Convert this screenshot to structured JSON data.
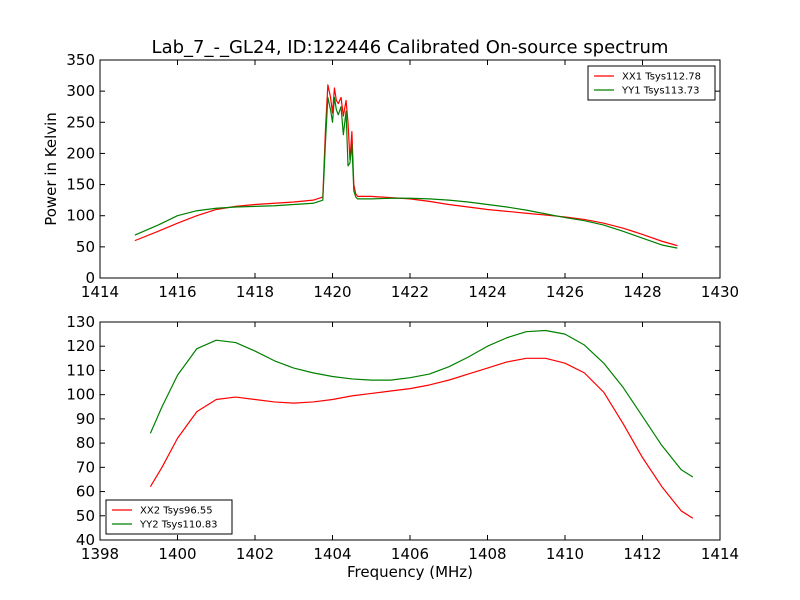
{
  "chart_data": [
    {
      "type": "line",
      "title": "Lab_7_-_GL24, ID:122446 Calibrated On-source spectrum",
      "xlabel": "",
      "ylabel": "Power in Kelvin",
      "xlim": [
        1414,
        1430
      ],
      "ylim": [
        0,
        350
      ],
      "xticks": [
        "1414",
        "1416",
        "1418",
        "1420",
        "1422",
        "1424",
        "1426",
        "1428",
        "1430"
      ],
      "yticks": [
        "0",
        "50",
        "100",
        "150",
        "200",
        "250",
        "300",
        "350"
      ],
      "legend_position": "top-right",
      "grid": false,
      "series": [
        {
          "name": "XX1 Tsys112.78",
          "color": "#ff0000",
          "x": [
            1414.9,
            1415.5,
            1416.0,
            1416.5,
            1417.0,
            1417.5,
            1418.0,
            1418.5,
            1419.0,
            1419.5,
            1419.75,
            1419.82,
            1419.88,
            1419.95,
            1420.0,
            1420.05,
            1420.1,
            1420.15,
            1420.22,
            1420.28,
            1420.35,
            1420.4,
            1420.45,
            1420.5,
            1420.55,
            1420.6,
            1420.65,
            1421.0,
            1421.5,
            1422.0,
            1422.5,
            1423.0,
            1423.5,
            1424.0,
            1424.5,
            1425.0,
            1425.5,
            1426.0,
            1426.5,
            1427.0,
            1427.5,
            1428.0,
            1428.5,
            1428.9
          ],
          "y": [
            60,
            75,
            88,
            100,
            110,
            115,
            118,
            120,
            122,
            125,
            130,
            240,
            310,
            290,
            265,
            305,
            285,
            280,
            290,
            260,
            285,
            250,
            190,
            235,
            150,
            135,
            131,
            131,
            129,
            127,
            123,
            118,
            114,
            110,
            107,
            104,
            101,
            98,
            94,
            88,
            80,
            70,
            59,
            52
          ]
        },
        {
          "name": "YY1 Tsys113.73",
          "color": "#008000",
          "x": [
            1414.9,
            1415.5,
            1416.0,
            1416.5,
            1417.0,
            1417.5,
            1418.0,
            1418.5,
            1419.0,
            1419.5,
            1419.75,
            1419.82,
            1419.88,
            1419.95,
            1420.0,
            1420.05,
            1420.1,
            1420.15,
            1420.22,
            1420.28,
            1420.35,
            1420.4,
            1420.45,
            1420.5,
            1420.55,
            1420.6,
            1420.65,
            1421.0,
            1421.5,
            1422.0,
            1422.5,
            1423.0,
            1423.5,
            1424.0,
            1424.5,
            1425.0,
            1425.5,
            1426.0,
            1426.5,
            1427.0,
            1427.5,
            1428.0,
            1428.5,
            1428.9
          ],
          "y": [
            69,
            85,
            100,
            108,
            112,
            114,
            115,
            116,
            118,
            120,
            125,
            220,
            290,
            270,
            250,
            290,
            270,
            262,
            275,
            230,
            268,
            180,
            185,
            215,
            140,
            130,
            127,
            127,
            128,
            128,
            127,
            125,
            122,
            118,
            114,
            109,
            103,
            97,
            92,
            85,
            75,
            64,
            53,
            48
          ]
        }
      ]
    },
    {
      "type": "line",
      "title": "",
      "xlabel": "Frequency (MHz)",
      "ylabel": "",
      "xlim": [
        1398,
        1414
      ],
      "ylim": [
        40,
        130
      ],
      "xticks": [
        "1398",
        "1400",
        "1402",
        "1404",
        "1406",
        "1408",
        "1410",
        "1412",
        "1414"
      ],
      "yticks": [
        "40",
        "50",
        "60",
        "70",
        "80",
        "90",
        "100",
        "110",
        "120",
        "130"
      ],
      "legend_position": "bottom-left",
      "grid": false,
      "series": [
        {
          "name": "XX2 Tsys96.55",
          "color": "#ff0000",
          "x": [
            1399.3,
            1399.6,
            1400.0,
            1400.5,
            1401.0,
            1401.5,
            1402.0,
            1402.5,
            1403.0,
            1403.5,
            1404.0,
            1404.5,
            1405.0,
            1405.5,
            1406.0,
            1406.5,
            1407.0,
            1407.5,
            1408.0,
            1408.5,
            1409.0,
            1409.5,
            1410.0,
            1410.5,
            1411.0,
            1411.5,
            1412.0,
            1412.5,
            1413.0,
            1413.3
          ],
          "y": [
            62,
            70,
            82,
            93,
            98,
            99,
            98,
            97,
            96.5,
            97,
            98,
            99.5,
            100.5,
            101.5,
            102.5,
            104,
            106,
            108.5,
            111,
            113.5,
            115,
            115,
            113,
            109,
            101,
            88,
            74,
            62,
            52,
            49
          ]
        },
        {
          "name": "YY2 Tsys110.83",
          "color": "#008000",
          "x": [
            1399.3,
            1399.6,
            1400.0,
            1400.5,
            1401.0,
            1401.5,
            1402.0,
            1402.5,
            1403.0,
            1403.5,
            1404.0,
            1404.5,
            1405.0,
            1405.5,
            1406.0,
            1406.5,
            1407.0,
            1407.5,
            1408.0,
            1408.5,
            1409.0,
            1409.5,
            1410.0,
            1410.5,
            1411.0,
            1411.5,
            1412.0,
            1412.5,
            1413.0,
            1413.3
          ],
          "y": [
            84,
            95,
            108,
            119,
            122.5,
            121.5,
            118,
            114,
            111,
            109,
            107.5,
            106.5,
            106,
            106,
            107,
            108.5,
            111.5,
            115.5,
            120,
            123.5,
            126,
            126.5,
            125,
            120.5,
            113,
            103,
            91,
            79,
            69,
            66
          ]
        }
      ]
    }
  ]
}
